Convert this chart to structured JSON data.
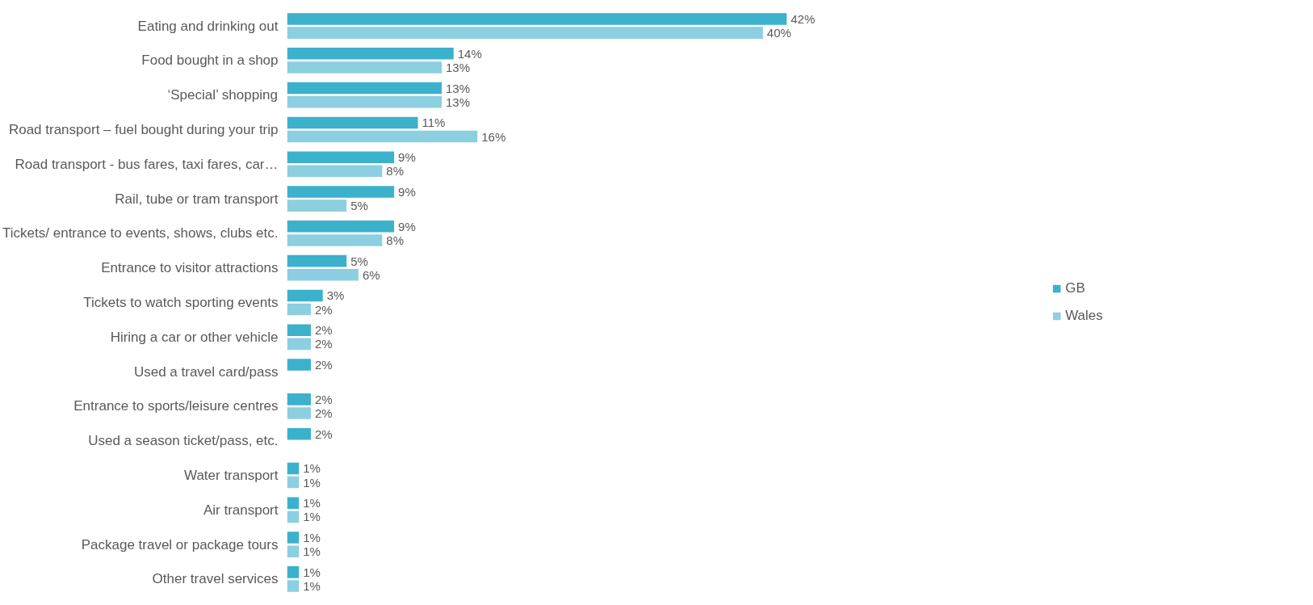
{
  "chart_data": {
    "type": "bar",
    "orientation": "horizontal",
    "legend": "right",
    "grid": false,
    "categories": [
      "Eating and drinking out",
      "Food bought in a shop",
      "‘Special’ shopping",
      "Road transport – fuel bought during your trip",
      "Road transport - bus fares, taxi fares, car…",
      "Rail, tube or tram transport",
      "Tickets/ entrance to events, shows, clubs etc.",
      "Entrance to visitor attractions",
      "Tickets to watch sporting events",
      "Hiring a car or other vehicle",
      "Used a travel card/pass",
      "Entrance to sports/leisure centres",
      "Used a season ticket/pass, etc.",
      "Water transport",
      "Air transport",
      "Package travel or package tours",
      "Other travel services"
    ],
    "series": [
      {
        "name": "GB",
        "color": "#3cb1cc",
        "values": [
          42,
          14,
          13,
          11,
          9,
          9,
          9,
          5,
          3,
          2,
          2,
          2,
          2,
          1,
          1,
          1,
          1
        ],
        "value_labels": [
          "42%",
          "14%",
          "13%",
          "11%",
          "9%",
          "9%",
          "9%",
          "5%",
          "3%",
          "2%",
          "2%",
          "2%",
          "2%",
          "1%",
          "1%",
          "1%",
          "1%"
        ]
      },
      {
        "name": "Wales",
        "color": "#8ccfe0",
        "values": [
          40,
          13,
          13,
          16,
          8,
          5,
          8,
          6,
          2,
          2,
          null,
          2,
          null,
          1,
          1,
          1,
          1
        ],
        "value_labels": [
          "40%",
          "13%",
          "13%",
          "16%",
          "8%",
          "5%",
          "8%",
          "6%",
          "2%",
          "2%",
          null,
          "2%",
          null,
          "1%",
          "1%",
          "1%",
          "1%"
        ]
      }
    ]
  }
}
